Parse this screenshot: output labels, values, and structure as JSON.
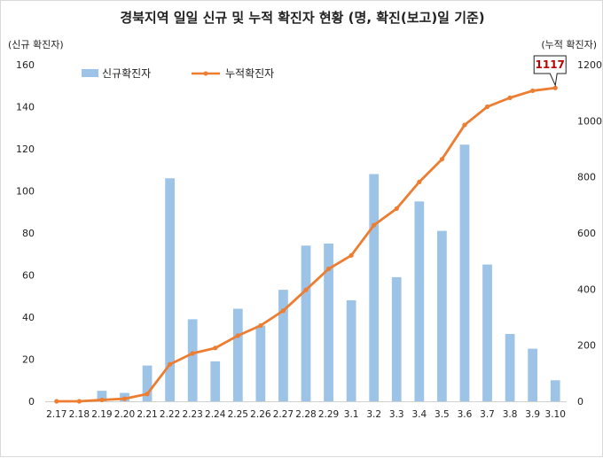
{
  "chart_data": {
    "type": "bar",
    "title": "경북지역 일일 신규 및 누적 확진자 현황 (명, 확진(보고)일 기준)",
    "ylabel_left": "(신규 확진자)",
    "ylabel_right": "(누적 확진자)",
    "ylim_left": [
      0,
      160
    ],
    "ylim_right": [
      0,
      1200
    ],
    "yticks_left": [
      0,
      20,
      40,
      60,
      80,
      100,
      120,
      140,
      160
    ],
    "yticks_right": [
      0,
      200,
      400,
      600,
      800,
      1000,
      1200
    ],
    "categories": [
      "2.17",
      "2.18",
      "2.19",
      "2.20",
      "2.21",
      "2.22",
      "2.23",
      "2.24",
      "2.25",
      "2.26",
      "2.27",
      "2.28",
      "2.29",
      "3.1",
      "3.2",
      "3.3",
      "3.4",
      "3.5",
      "3.6",
      "3.7",
      "3.8",
      "3.9",
      "3.10"
    ],
    "series": [
      {
        "name": "신규확진자",
        "type": "bar",
        "axis": "left",
        "color": "#9dc3e6",
        "values": [
          0,
          0,
          5,
          4,
          17,
          106,
          39,
          19,
          44,
          36,
          53,
          74,
          75,
          48,
          108,
          59,
          95,
          81,
          122,
          65,
          32,
          25,
          10
        ]
      },
      {
        "name": "누적확진자",
        "type": "line",
        "axis": "right",
        "color": "#ed7d31",
        "values": [
          0,
          0,
          5,
          9,
          26,
          132,
          171,
          190,
          234,
          270,
          323,
          397,
          472,
          520,
          628,
          687,
          782,
          863,
          985,
          1050,
          1082,
          1107,
          1117
        ]
      }
    ],
    "legend": [
      "신규확진자",
      "누적확진자"
    ],
    "legend_position": "top-left",
    "grid": false,
    "annotation": {
      "label": "1117"
    }
  }
}
